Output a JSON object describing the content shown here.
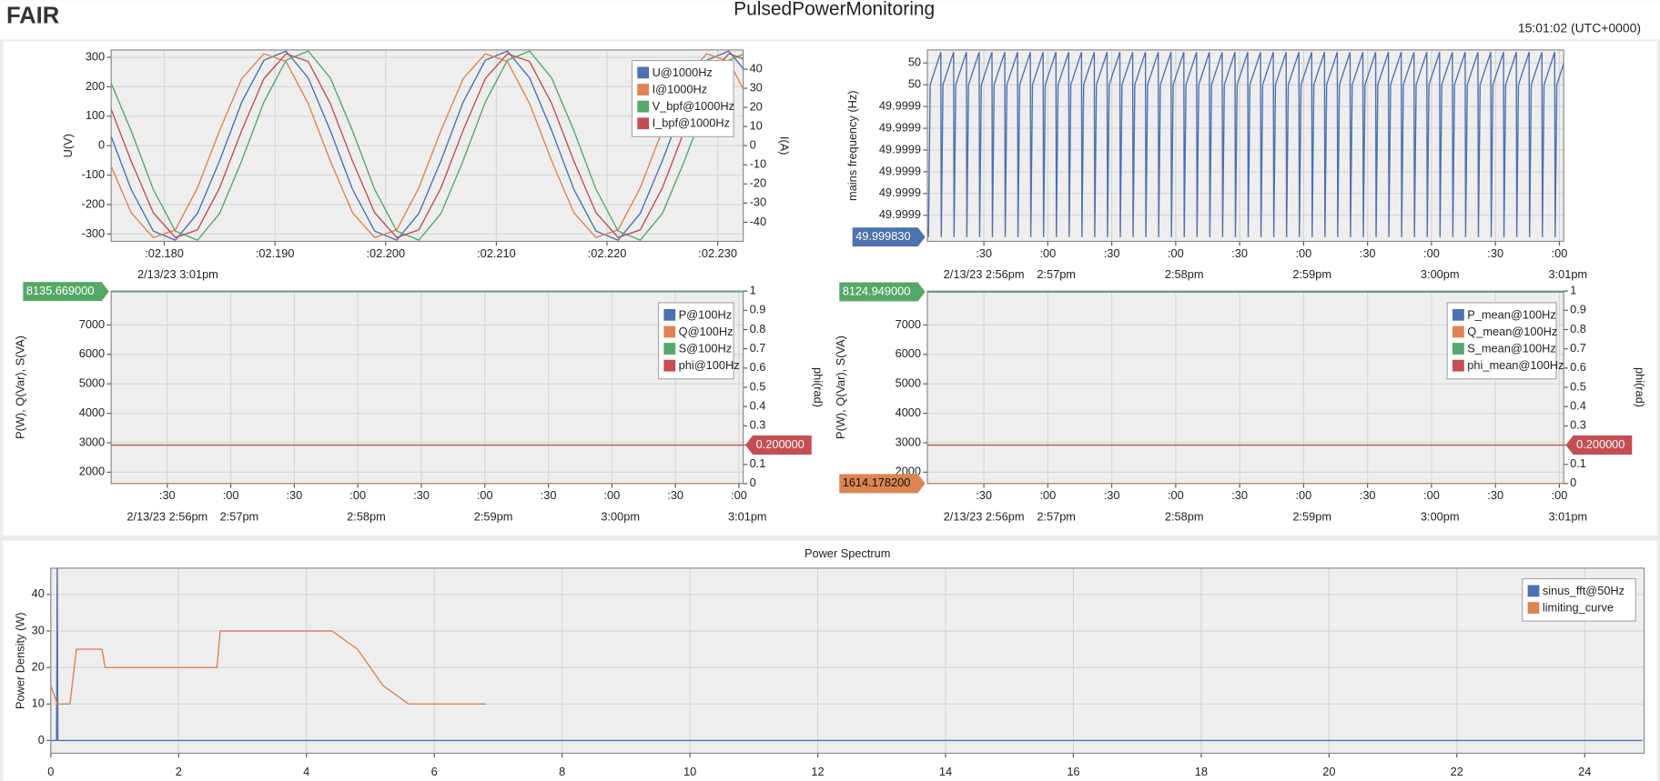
{
  "header": {
    "logo": "FAIR",
    "title": "PulsedPowerMonitoring",
    "time": "15:01:02 (UTC+0000)"
  },
  "chart_data": [
    {
      "type": "line",
      "ylabel": "U(V)",
      "y2label": "I(A)",
      "date_label": "2/13/23 3:01pm",
      "grid": true,
      "legend": "top-right",
      "x": [
        2.173,
        2.175,
        2.177,
        2.179,
        2.181,
        2.183,
        2.185,
        2.187,
        2.189,
        2.191,
        2.193,
        2.195,
        2.197,
        2.199,
        2.201,
        2.203,
        2.205,
        2.207,
        2.209,
        2.211,
        2.213,
        2.215,
        2.217,
        2.219,
        2.221,
        2.223,
        2.225,
        2.227,
        2.229,
        2.231,
        2.233
      ],
      "series": [
        {
          "name": "U@1000Hz",
          "color": "#4c72b0",
          "values": [
            230,
            51,
            -148,
            -290,
            -321,
            -230,
            -51,
            148,
            290,
            321,
            230,
            51,
            -148,
            -290,
            -321,
            -230,
            -51,
            148,
            290,
            321,
            230,
            51,
            -148,
            -290,
            -321,
            -230,
            -51,
            148,
            290,
            321,
            230
          ]
        },
        {
          "name": "I@1000Hz",
          "color": "#dd8452",
          "axis": "y2",
          "values": [
            22,
            -8,
            -35,
            -48,
            -44,
            -22,
            8,
            35,
            48,
            44,
            22,
            -8,
            -35,
            -48,
            -44,
            -22,
            8,
            35,
            48,
            44,
            22,
            -8,
            -35,
            -48,
            -44,
            -22,
            8,
            35,
            48,
            44,
            22
          ]
        },
        {
          "name": "V_bpf@1000Hz",
          "color": "#55a868",
          "values": [
            321,
            230,
            51,
            -148,
            -290,
            -321,
            -230,
            -51,
            148,
            290,
            321,
            230,
            51,
            -148,
            -290,
            -321,
            -230,
            -51,
            148,
            290,
            321,
            230,
            51,
            -148,
            -290,
            -321,
            -230,
            -51,
            148,
            290,
            321
          ]
        },
        {
          "name": "I_bpf@1000Hz",
          "color": "#c44e52",
          "axis": "y2",
          "values": [
            44,
            22,
            -8,
            -35,
            -48,
            -44,
            -22,
            8,
            35,
            48,
            44,
            22,
            -8,
            -35,
            -48,
            -44,
            -22,
            8,
            35,
            48,
            44,
            22,
            -8,
            -35,
            -48,
            -44,
            -22,
            8,
            35,
            48,
            44
          ]
        }
      ],
      "xlim": [
        2.1752,
        2.2323
      ],
      "xticks": [
        {
          "value": 2.18,
          "label": ":02.180"
        },
        {
          "value": 2.19,
          "label": ":02.190"
        },
        {
          "value": 2.2,
          "label": ":02.200"
        },
        {
          "value": 2.21,
          "label": ":02.210"
        },
        {
          "value": 2.22,
          "label": ":02.220"
        },
        {
          "value": 2.23,
          "label": ":02.230"
        }
      ],
      "ylim": [
        -325,
        325
      ],
      "yticks": [
        -300,
        -200,
        -100,
        0,
        100,
        200,
        300
      ],
      "y2lim": [
        -50,
        50
      ],
      "y2ticks": [
        -40,
        -30,
        -20,
        -10,
        0,
        10,
        20,
        30,
        40
      ]
    },
    {
      "type": "line",
      "ylabel": "mains frequency (Hz)",
      "grid": true,
      "color": "#4c72b0",
      "x": [
        53764,
        53764.8,
        53769.8,
        53770,
        53770.8,
        53775.8,
        53776,
        53776.8,
        53781.8,
        53782,
        53782.8,
        53787.8,
        53788,
        53788.8,
        53793.8,
        53794,
        53794.8,
        53799.8,
        53800,
        53800.8,
        53805.8,
        53806,
        53806.8,
        53811.8,
        53812,
        53812.8,
        53817.8,
        53818,
        53818.8,
        53823.8,
        53824,
        53824.8,
        53829.8,
        53830,
        53830.8,
        53835.8,
        53836,
        53836.8,
        53841.8,
        53842,
        53842.8,
        53847.8,
        53848,
        53848.8,
        53853.8,
        53854,
        53854.8,
        53859.8,
        53860,
        53860.8,
        53865.8,
        53866,
        53866.8,
        53871.8,
        53872,
        53872.8,
        53877.8,
        53878,
        53878.8,
        53883.8,
        53884,
        53884.8,
        53889.8,
        53890,
        53890.8,
        53895.8,
        53896,
        53896.8,
        53901.8,
        53902,
        53902.8,
        53907.8,
        53908,
        53908.8,
        53913.8,
        53914,
        53914.8,
        53919.8,
        53920,
        53920.8,
        53925.8,
        53926,
        53926.8,
        53931.8,
        53932,
        53932.8,
        53937.8,
        53938,
        53938.8,
        53943.8,
        53944,
        53944.8,
        53949.8,
        53950,
        53950.8,
        53955.8,
        53956,
        53956.8,
        53961.8,
        53962,
        53962.8,
        53967.8,
        53968,
        53968.8,
        53973.8,
        53974,
        53974.8,
        53979.8,
        53980,
        53980.8,
        53985.8,
        53986,
        53986.8,
        53991.8,
        53992,
        53992.8,
        53997.8,
        53998,
        53998.8,
        54003.8,
        54004,
        54004.8,
        54009.8,
        54010,
        54010.8,
        54015.8,
        54016,
        54016.8,
        54021.8,
        54022,
        54022.8,
        54027.8,
        54028,
        54028.8,
        54033.8,
        54034,
        54034.8,
        54039.8,
        54040,
        54040.8,
        54045.8,
        54046,
        54046.8,
        54051.8,
        54052,
        54052.8,
        54057.8,
        54058,
        54058.8,
        54063.8
      ],
      "values": [
        49.99983,
        49.99997,
        50,
        49.99983,
        49.99997,
        50,
        49.99983,
        49.99997,
        50,
        49.99983,
        49.99997,
        50,
        49.99983,
        49.99997,
        50,
        49.99983,
        49.99997,
        50,
        49.99983,
        49.99997,
        50,
        49.99983,
        49.99997,
        50,
        49.99983,
        49.99997,
        50,
        49.99983,
        49.99997,
        50,
        49.99983,
        49.99997,
        50,
        49.99983,
        49.99997,
        50,
        49.99983,
        49.99997,
        50,
        49.99983,
        49.99997,
        50,
        49.99983,
        49.99997,
        50,
        49.99983,
        49.99997,
        50,
        49.99983,
        49.99997,
        50,
        49.99983,
        49.99997,
        50,
        49.99983,
        49.99997,
        50,
        49.99983,
        49.99997,
        50,
        49.99983,
        49.99997,
        50,
        49.99983,
        49.99997,
        50,
        49.99983,
        49.99997,
        50,
        49.99983,
        49.99997,
        50,
        49.99983,
        49.99997,
        50,
        49.99983,
        49.99997,
        50,
        49.99983,
        49.99997,
        50,
        49.99983,
        49.99997,
        50,
        49.99983,
        49.99997,
        50,
        49.99983,
        49.99997,
        50,
        49.99983,
        49.99997,
        50,
        49.99983,
        49.99997,
        50,
        49.99983,
        49.99997,
        50,
        49.99983,
        49.99997,
        50,
        49.99983,
        49.99997,
        50,
        49.99983,
        49.99997,
        50,
        49.99983,
        49.99997,
        50,
        49.99983,
        49.99997,
        50,
        49.99983,
        49.99997,
        50,
        49.99983,
        49.99997,
        50,
        49.99983,
        49.99997,
        50,
        49.99983,
        49.99997,
        50,
        49.99983,
        49.99997,
        50,
        49.99983,
        49.99997,
        50,
        49.99983,
        49.99997,
        50,
        49.99983,
        49.99997,
        50,
        49.99983,
        49.99997,
        50,
        49.99983,
        49.99997,
        50,
        49.99983,
        49.99997,
        50,
        49.99983,
        49.99997,
        50
      ],
      "current": {
        "value": 49.99983,
        "label": "49.999830"
      },
      "xlim": [
        53763.5,
        54062
      ],
      "xticks": [
        {
          "value": 53790,
          "label": ":30"
        },
        {
          "value": 53820,
          "label": ":00"
        },
        {
          "value": 53850,
          "label": ":30"
        },
        {
          "value": 53880,
          "label": ":00"
        },
        {
          "value": 53910,
          "label": ":30"
        },
        {
          "value": 53940,
          "label": ":00"
        },
        {
          "value": 53970,
          "label": ":30"
        },
        {
          "value": 54000,
          "label": ":00"
        },
        {
          "value": 54030,
          "label": ":30"
        },
        {
          "value": 54060,
          "label": ":00"
        }
      ],
      "time_labels": [
        {
          "value": 53790,
          "label": "2/13/23 2:56pm"
        },
        {
          "value": 53820,
          "label": "2:57pm"
        },
        {
          "value": 53880,
          "label": "2:58pm"
        },
        {
          "value": 53940,
          "label": "2:59pm"
        },
        {
          "value": 54000,
          "label": "3:00pm"
        },
        {
          "value": 54060,
          "label": "3:01pm"
        }
      ],
      "ylim": [
        49.999826,
        50.000002
      ],
      "yticks": [
        {
          "value": 49.99999,
          "label": "50"
        },
        {
          "value": 49.99997,
          "label": "50"
        },
        {
          "value": 49.99995,
          "label": "49.9999"
        },
        {
          "value": 49.99993,
          "label": "49.9999"
        },
        {
          "value": 49.99991,
          "label": "49.9999"
        },
        {
          "value": 49.99989,
          "label": "49.9999"
        },
        {
          "value": 49.99987,
          "label": "49.9999"
        },
        {
          "value": 49.99985,
          "label": "49.9999"
        }
      ]
    },
    {
      "type": "line",
      "ylabel": "P(W), Q(Var), S(VA)",
      "y2label": "phi(rad)",
      "grid": true,
      "legend": "top-right",
      "x": [
        53763.5,
        54062
      ],
      "series": [
        {
          "name": "P@100Hz",
          "color": "#4c72b0",
          "values": [
            8128,
            8128
          ]
        },
        {
          "name": "Q@100Hz",
          "color": "#dd8452",
          "values": [
            1614,
            1614
          ]
        },
        {
          "name": "S@100Hz",
          "color": "#55a868",
          "values": [
            8135.669,
            8135.669
          ],
          "current": {
            "value": 8135.669,
            "label": "8135.669000"
          }
        },
        {
          "name": "phi@100Hz",
          "color": "#c44e52",
          "axis": "y2",
          "values": [
            0.2,
            0.2
          ],
          "current": {
            "value": 0.2,
            "label": "0.200000"
          }
        }
      ],
      "xlim": [
        53763.5,
        54062
      ],
      "xticks": [
        {
          "value": 53790,
          "label": ":30"
        },
        {
          "value": 53820,
          "label": ":00"
        },
        {
          "value": 53850,
          "label": ":30"
        },
        {
          "value": 53880,
          "label": ":00"
        },
        {
          "value": 53910,
          "label": ":30"
        },
        {
          "value": 53940,
          "label": ":00"
        },
        {
          "value": 53970,
          "label": ":30"
        },
        {
          "value": 54000,
          "label": ":00"
        },
        {
          "value": 54030,
          "label": ":30"
        },
        {
          "value": 54060,
          "label": ":00"
        }
      ],
      "time_labels": [
        {
          "value": 53790,
          "label": "2/13/23 2:56pm"
        },
        {
          "value": 53820,
          "label": "2:57pm"
        },
        {
          "value": 53880,
          "label": "2:58pm"
        },
        {
          "value": 53940,
          "label": "2:59pm"
        },
        {
          "value": 54000,
          "label": "3:00pm"
        },
        {
          "value": 54060,
          "label": "3:01pm"
        }
      ],
      "ylim": [
        1614,
        8150
      ],
      "yticks": [
        2000,
        3000,
        4000,
        5000,
        6000,
        7000
      ],
      "y2lim": [
        0,
        1
      ],
      "y2ticks": [
        0,
        0.1,
        0.2,
        0.3,
        0.4,
        0.5,
        0.6,
        0.7,
        0.8,
        0.9,
        1
      ]
    },
    {
      "type": "line",
      "ylabel": "P(W), Q(Var), S(VA)",
      "y2label": "phi(rad)",
      "grid": true,
      "legend": "top-right",
      "x": [
        53763.5,
        54062
      ],
      "series": [
        {
          "name": "P_mean@100Hz",
          "color": "#4c72b0",
          "values": [
            8118,
            8118
          ]
        },
        {
          "name": "Q_mean@100Hz",
          "color": "#dd8452",
          "values": [
            1614.1782,
            1614.1782
          ],
          "current": {
            "value": 1614.1782,
            "label": "1614.178200"
          }
        },
        {
          "name": "S_mean@100Hz",
          "color": "#55a868",
          "values": [
            8124.949,
            8124.949
          ],
          "current": {
            "value": 8124.949,
            "label": "8124.949000"
          }
        },
        {
          "name": "phi_mean@100Hz",
          "color": "#c44e52",
          "axis": "y2",
          "values": [
            0.2,
            0.2
          ],
          "current": {
            "value": 0.2,
            "label": "0.200000"
          }
        }
      ],
      "xlim": [
        53763.5,
        54062
      ],
      "xticks": [
        {
          "value": 53790,
          "label": ":30"
        },
        {
          "value": 53820,
          "label": ":00"
        },
        {
          "value": 53850,
          "label": ":30"
        },
        {
          "value": 53880,
          "label": ":00"
        },
        {
          "value": 53910,
          "label": ":30"
        },
        {
          "value": 53940,
          "label": ":00"
        },
        {
          "value": 53970,
          "label": ":30"
        },
        {
          "value": 54000,
          "label": ":00"
        },
        {
          "value": 54030,
          "label": ":30"
        },
        {
          "value": 54060,
          "label": ":00"
        }
      ],
      "time_labels": [
        {
          "value": 53790,
          "label": "2/13/23 2:56pm"
        },
        {
          "value": 53820,
          "label": "2:57pm"
        },
        {
          "value": 53880,
          "label": "2:58pm"
        },
        {
          "value": 53940,
          "label": "2:59pm"
        },
        {
          "value": 54000,
          "label": "3:00pm"
        },
        {
          "value": 54060,
          "label": "3:01pm"
        }
      ],
      "ylim": [
        1614,
        8150
      ],
      "yticks": [
        2000,
        3000,
        4000,
        5000,
        6000,
        7000
      ],
      "y2lim": [
        0,
        1
      ],
      "y2ticks": [
        0,
        0.1,
        0.2,
        0.3,
        0.4,
        0.5,
        0.6,
        0.7,
        0.8,
        0.9,
        1
      ]
    },
    {
      "type": "line",
      "title": "Power Spectrum",
      "ylabel": "Power Density (W)",
      "grid": true,
      "legend": "top-right",
      "series": [
        {
          "name": "sinus_fft@50Hz",
          "color": "#4c72b0",
          "x": [
            0,
            0.09,
            0.1,
            0.11,
            24.9
          ],
          "values": [
            0,
            0,
            48,
            0,
            0
          ]
        },
        {
          "name": "limiting_curve",
          "color": "#dd8452",
          "x": [
            0,
            0.1,
            0.3,
            0.4,
            0.8,
            0.85,
            2.6,
            2.65,
            4.4,
            4.8,
            5.2,
            5.6,
            6.8
          ],
          "values": [
            15,
            10,
            10,
            25,
            25,
            20,
            20,
            30,
            30,
            25,
            15,
            10,
            10
          ]
        }
      ],
      "xlim": [
        0,
        24.93
      ],
      "xticks": [
        0,
        2,
        4,
        6,
        8,
        10,
        12,
        14,
        16,
        18,
        20,
        22,
        24
      ],
      "ylim": [
        -3.5,
        47.2
      ],
      "yticks": [
        0,
        10,
        20,
        30,
        40
      ]
    }
  ]
}
